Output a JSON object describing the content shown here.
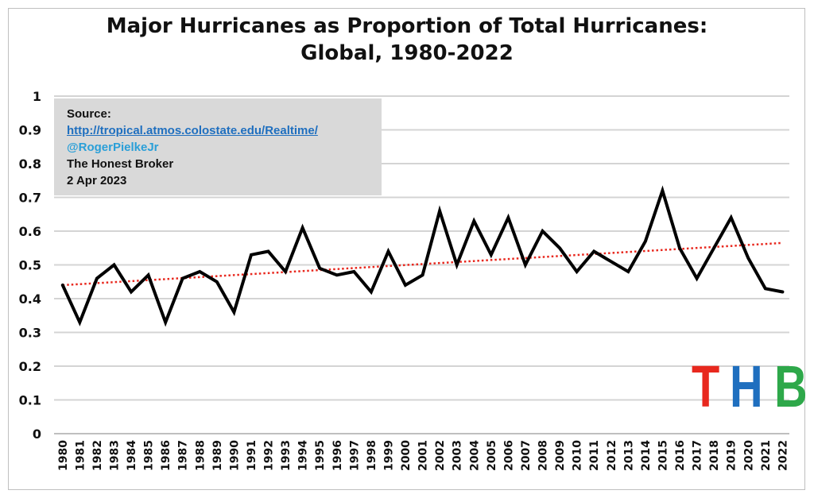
{
  "chart_data": {
    "type": "line",
    "title": "Major Hurricanes as Proportion of Total Hurricanes:",
    "subtitle": "Global, 1980-2022",
    "xlabel": "",
    "ylabel": "",
    "ylim": [
      0,
      1
    ],
    "yticks": [
      "0",
      "0.1",
      "0.2",
      "0.3",
      "0.4",
      "0.5",
      "0.6",
      "0.7",
      "0.8",
      "0.9",
      "1"
    ],
    "grid": true,
    "categories": [
      "1980",
      "1981",
      "1982",
      "1983",
      "1984",
      "1985",
      "1986",
      "1987",
      "1988",
      "1989",
      "1990",
      "1991",
      "1992",
      "1993",
      "1994",
      "1995",
      "1996",
      "1997",
      "1998",
      "1999",
      "2000",
      "2001",
      "2002",
      "2003",
      "2004",
      "2005",
      "2006",
      "2007",
      "2008",
      "2009",
      "2010",
      "2011",
      "2012",
      "2013",
      "2014",
      "2015",
      "2016",
      "2017",
      "2018",
      "2019",
      "2020",
      "2021",
      "2022"
    ],
    "series": [
      {
        "values": [
          0.44,
          0.33,
          0.46,
          0.5,
          0.42,
          0.47,
          0.33,
          0.46,
          0.48,
          0.45,
          0.36,
          0.53,
          0.54,
          0.48,
          0.61,
          0.49,
          0.47,
          0.48,
          0.42,
          0.54,
          0.44,
          0.47,
          0.66,
          0.5,
          0.63,
          0.53,
          0.64,
          0.5,
          0.6,
          0.55,
          0.48,
          0.54,
          0.51,
          0.48,
          0.57,
          0.72,
          0.55,
          0.46,
          0.55,
          0.64,
          0.52,
          0.43,
          0.42
        ],
        "color": "#000000"
      }
    ],
    "trendline": {
      "start": 0.44,
      "end": 0.565,
      "color": "#e8281e",
      "style": "dotted"
    }
  },
  "source_box": {
    "heading": "Source:",
    "link": "http://tropical.atmos.colostate.edu/Realtime/",
    "handle": "@RogerPielkeJr",
    "publisher": "The Honest Broker",
    "date": "2 Apr 2023"
  },
  "logo": {
    "letters": [
      "T",
      "H",
      "B"
    ],
    "colors": [
      "#e8281e",
      "#1f6fbf",
      "#2ea84a"
    ]
  }
}
